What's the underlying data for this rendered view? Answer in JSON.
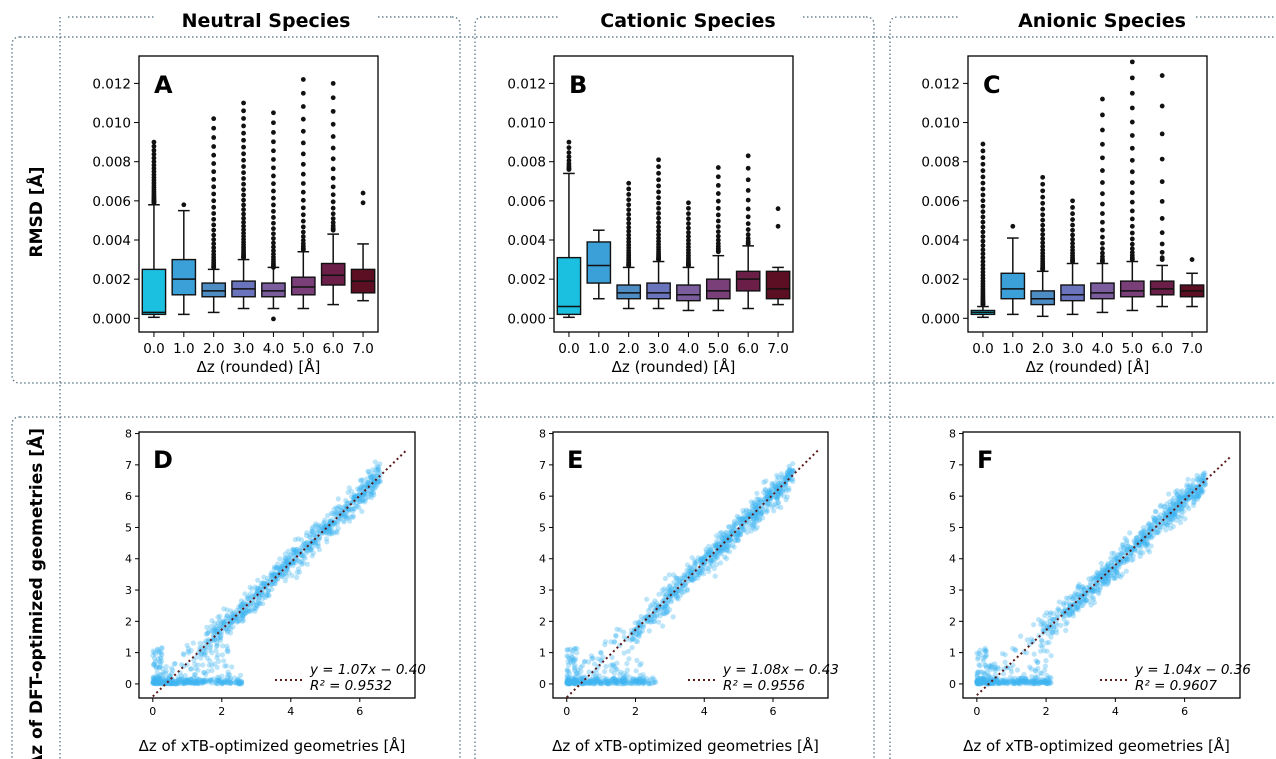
{
  "column_titles": [
    "Neutral Species",
    "Cationic Species",
    "Anionic Species"
  ],
  "row_labels": {
    "top": "RMSD [Å]",
    "bottom": "Δz of DFT-optimized geometries [Å]"
  },
  "palette": [
    "#1bbfdf",
    "#3ba0d8",
    "#4e8cc4",
    "#6a74bd",
    "#7b5d9e",
    "#7a3f78",
    "#6b1f48",
    "#5c0f22"
  ],
  "scatter_color": "#3fb5f0",
  "fit_line_color": "#5a1a1a",
  "chart_data": [
    {
      "panel": "A",
      "type": "box",
      "xlabel": "Δz (rounded) [Å]",
      "ylabel": "RMSD [Å]",
      "categories": [
        "0.0",
        "1.0",
        "2.0",
        "3.0",
        "4.0",
        "5.0",
        "6.0",
        "7.0"
      ],
      "ylim": [
        -0.0007,
        0.0134
      ],
      "yticks": [
        "0.000",
        "0.002",
        "0.004",
        "0.006",
        "0.008",
        "0.010",
        "0.012"
      ],
      "boxes": [
        {
          "wlo": 5e-05,
          "q1": 0.0002,
          "med": 0.0003,
          "q3": 0.0025,
          "whi": 0.0058,
          "out_lo": 0.0059,
          "out_hi": 0.009,
          "out_n": 28
        },
        {
          "wlo": 0.0002,
          "q1": 0.0012,
          "med": 0.002,
          "q3": 0.003,
          "whi": 0.0055,
          "out_lo": 0.0058,
          "out_hi": 0.0058,
          "out_n": 1
        },
        {
          "wlo": 0.0003,
          "q1": 0.0011,
          "med": 0.0014,
          "q3": 0.0018,
          "whi": 0.0025,
          "out_lo": 0.0026,
          "out_hi": 0.0102,
          "out_n": 30
        },
        {
          "wlo": 0.0005,
          "q1": 0.0011,
          "med": 0.0015,
          "q3": 0.0019,
          "whi": 0.003,
          "out_lo": 0.0031,
          "out_hi": 0.011,
          "out_n": 38
        },
        {
          "wlo": 0.0005,
          "q1": 0.0011,
          "med": 0.0014,
          "q3": 0.0018,
          "whi": 0.0026,
          "out_lo": -3e-05,
          "out_hi": 0.0105,
          "out_n": 30
        },
        {
          "wlo": 0.0005,
          "q1": 0.0012,
          "med": 0.0016,
          "q3": 0.0021,
          "whi": 0.0034,
          "out_lo": 0.0035,
          "out_hi": 0.0122,
          "out_n": 24
        },
        {
          "wlo": 0.0007,
          "q1": 0.0017,
          "med": 0.0022,
          "q3": 0.0028,
          "whi": 0.0043,
          "out_lo": 0.0045,
          "out_hi": 0.012,
          "out_n": 20
        },
        {
          "wlo": 0.0009,
          "q1": 0.0013,
          "med": 0.0019,
          "q3": 0.0025,
          "whi": 0.0038,
          "out_lo": 0.0059,
          "out_hi": 0.0064,
          "out_n": 2
        }
      ]
    },
    {
      "panel": "B",
      "type": "box",
      "xlabel": "Δz (rounded) [Å]",
      "ylabel": "RMSD [Å]",
      "categories": [
        "0.0",
        "1.0",
        "2.0",
        "3.0",
        "4.0",
        "5.0",
        "6.0",
        "7.0"
      ],
      "ylim": [
        -0.0007,
        0.0134
      ],
      "yticks": [
        "0.000",
        "0.002",
        "0.004",
        "0.006",
        "0.008",
        "0.010",
        "0.012"
      ],
      "boxes": [
        {
          "wlo": 5e-05,
          "q1": 0.0002,
          "med": 0.0006,
          "q3": 0.0031,
          "whi": 0.0074,
          "out_lo": 0.0076,
          "out_hi": 0.009,
          "out_n": 10
        },
        {
          "wlo": 0.001,
          "q1": 0.0018,
          "med": 0.0027,
          "q3": 0.0039,
          "whi": 0.0045,
          "out_lo": 0,
          "out_hi": 0,
          "out_n": 0
        },
        {
          "wlo": 0.0005,
          "q1": 0.001,
          "med": 0.0013,
          "q3": 0.0017,
          "whi": 0.0026,
          "out_lo": 0.0027,
          "out_hi": 0.0069,
          "out_n": 28
        },
        {
          "wlo": 0.0005,
          "q1": 0.001,
          "med": 0.0013,
          "q3": 0.0018,
          "whi": 0.0029,
          "out_lo": 0.003,
          "out_hi": 0.0081,
          "out_n": 28
        },
        {
          "wlo": 0.0004,
          "q1": 0.0009,
          "med": 0.0012,
          "q3": 0.0017,
          "whi": 0.0026,
          "out_lo": 0.0027,
          "out_hi": 0.0059,
          "out_n": 22
        },
        {
          "wlo": 0.0004,
          "q1": 0.001,
          "med": 0.0014,
          "q3": 0.002,
          "whi": 0.0032,
          "out_lo": 0.0034,
          "out_hi": 0.0077,
          "out_n": 18
        },
        {
          "wlo": 0.0005,
          "q1": 0.0014,
          "med": 0.002,
          "q3": 0.0024,
          "whi": 0.0037,
          "out_lo": 0.0038,
          "out_hi": 0.0083,
          "out_n": 14
        },
        {
          "wlo": 0.0007,
          "q1": 0.001,
          "med": 0.0015,
          "q3": 0.0024,
          "whi": 0.0026,
          "out_lo": 0.0047,
          "out_hi": 0.0056,
          "out_n": 2
        }
      ]
    },
    {
      "panel": "C",
      "type": "box",
      "xlabel": "Δz (rounded) [Å]",
      "ylabel": "RMSD [Å]",
      "categories": [
        "0.0",
        "1.0",
        "2.0",
        "3.0",
        "4.0",
        "5.0",
        "6.0",
        "7.0"
      ],
      "ylim": [
        -0.0007,
        0.0134
      ],
      "yticks": [
        "0.000",
        "0.002",
        "0.004",
        "0.006",
        "0.008",
        "0.010",
        "0.012"
      ],
      "boxes": [
        {
          "wlo": 5e-05,
          "q1": 0.0002,
          "med": 0.0003,
          "q3": 0.0004,
          "whi": 0.0006,
          "out_lo": 0.0007,
          "out_hi": 0.0089,
          "out_n": 45
        },
        {
          "wlo": 0.0002,
          "q1": 0.001,
          "med": 0.0015,
          "q3": 0.0023,
          "whi": 0.0041,
          "out_lo": 0.0047,
          "out_hi": 0.0047,
          "out_n": 1
        },
        {
          "wlo": 0.0001,
          "q1": 0.0007,
          "med": 0.001,
          "q3": 0.0014,
          "whi": 0.0024,
          "out_lo": 0.0025,
          "out_hi": 0.0072,
          "out_n": 26
        },
        {
          "wlo": 0.0002,
          "q1": 0.0009,
          "med": 0.0012,
          "q3": 0.0017,
          "whi": 0.0028,
          "out_lo": 0.0029,
          "out_hi": 0.006,
          "out_n": 18
        },
        {
          "wlo": 0.0003,
          "q1": 0.001,
          "med": 0.0013,
          "q3": 0.0018,
          "whi": 0.0028,
          "out_lo": 0.0029,
          "out_hi": 0.0112,
          "out_n": 20
        },
        {
          "wlo": 0.0004,
          "q1": 0.0011,
          "med": 0.0014,
          "q3": 0.0019,
          "whi": 0.0029,
          "out_lo": 0.003,
          "out_hi": 0.0131,
          "out_n": 24
        },
        {
          "wlo": 0.0006,
          "q1": 0.0012,
          "med": 0.0015,
          "q3": 0.0019,
          "whi": 0.0027,
          "out_lo": 0.003,
          "out_hi": 0.0124,
          "out_n": 12
        },
        {
          "wlo": 0.0006,
          "q1": 0.0011,
          "med": 0.0014,
          "q3": 0.0017,
          "whi": 0.0023,
          "out_lo": 0.003,
          "out_hi": 0.003,
          "out_n": 1
        }
      ]
    },
    {
      "panel": "D",
      "type": "scatter",
      "xlabel": "Δz of xTB-optimized geometries [Å]",
      "ylabel": "Δz of DFT-optimized geometries [Å]",
      "xlim": [
        -0.4,
        7.6
      ],
      "ylim": [
        -0.45,
        8.05
      ],
      "xticks": [
        0,
        2,
        4,
        6
      ],
      "yticks": [
        0,
        1,
        2,
        3,
        4,
        5,
        6,
        7,
        8
      ],
      "fit": {
        "slope": 1.07,
        "intercept": -0.4,
        "r2": 0.9532
      },
      "fit_text": {
        "eq": "y = 1.07x − 0.40",
        "r2": "R² = 0.9532"
      }
    },
    {
      "panel": "E",
      "type": "scatter",
      "xlabel": "Δz of xTB-optimized geometries [Å]",
      "ylabel": "Δz of DFT-optimized geometries [Å]",
      "xlim": [
        -0.4,
        7.6
      ],
      "ylim": [
        -0.45,
        8.05
      ],
      "xticks": [
        0,
        2,
        4,
        6
      ],
      "yticks": [
        0,
        1,
        2,
        3,
        4,
        5,
        6,
        7,
        8
      ],
      "fit": {
        "slope": 1.08,
        "intercept": -0.43,
        "r2": 0.9556
      },
      "fit_text": {
        "eq": "y = 1.08x − 0.43",
        "r2": "R² = 0.9556"
      }
    },
    {
      "panel": "F",
      "type": "scatter",
      "xlabel": "Δz of xTB-optimized geometries [Å]",
      "ylabel": "Δz of DFT-optimized geometries [Å]",
      "xlim": [
        -0.4,
        7.6
      ],
      "ylim": [
        -0.45,
        8.05
      ],
      "xticks": [
        0,
        2,
        4,
        6
      ],
      "yticks": [
        0,
        1,
        2,
        3,
        4,
        5,
        6,
        7,
        8
      ],
      "fit": {
        "slope": 1.04,
        "intercept": -0.36,
        "r2": 0.9607
      },
      "fit_text": {
        "eq": "y = 1.04x − 0.36",
        "r2": "R² = 0.9607"
      }
    }
  ]
}
